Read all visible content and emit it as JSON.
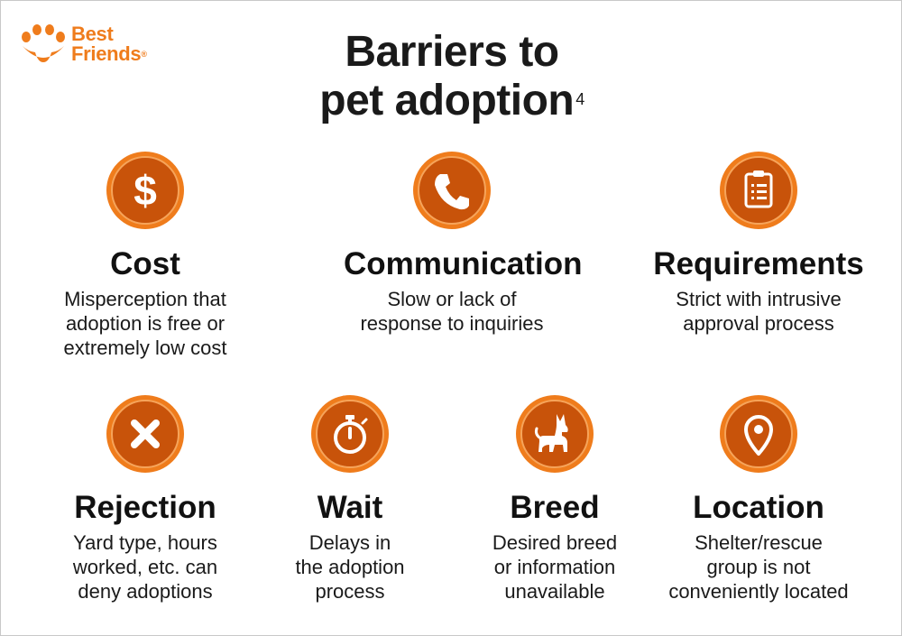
{
  "logo": {
    "line1": "Best",
    "line2": "Friends",
    "reg": "®"
  },
  "title": {
    "line1": "Barriers to",
    "line2": "pet adoption",
    "footnote": "4"
  },
  "items": [
    {
      "title": "Cost",
      "description": "Misperception that\nadoption is free or\nextremely low cost",
      "icon": "dollar-icon"
    },
    {
      "title": "Communication",
      "description": "Slow or lack of\nresponse to inquiries",
      "icon": "phone-icon"
    },
    {
      "title": "Requirements",
      "description": "Strict with intrusive\napproval process",
      "icon": "clipboard-icon"
    },
    {
      "title": "Rejection",
      "description": "Yard type, hours\nworked, etc. can\ndeny adoptions",
      "icon": "x-icon"
    },
    {
      "title": "Wait",
      "description": "Delays in\nthe adoption\nprocess",
      "icon": "stopwatch-icon"
    },
    {
      "title": "Breed",
      "description": "Desired breed\nor information\nunavailable",
      "icon": "dog-icon"
    },
    {
      "title": "Location",
      "description": "Shelter/rescue\ngroup is not\nconveniently located",
      "icon": "location-pin-icon"
    }
  ],
  "colors": {
    "accent": "#ef7c1c",
    "accent_dark": "#c8530a",
    "accent_light": "#f6a45a",
    "text": "#111111"
  }
}
